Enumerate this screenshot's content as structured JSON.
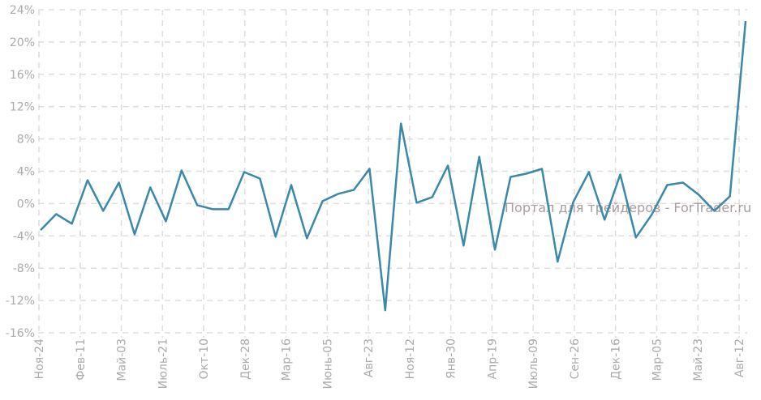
{
  "chart_data": {
    "type": "line",
    "title": "",
    "xlabel": "",
    "ylabel": "",
    "ylim": [
      -16,
      24
    ],
    "yticks": [
      -16,
      -12,
      -8,
      -4,
      0,
      4,
      8,
      12,
      16,
      20,
      24
    ],
    "ytick_labels": [
      "-16%",
      "-12%",
      "-8%",
      "-4%",
      "0%",
      "4%",
      "8%",
      "12%",
      "16%",
      "20%",
      "24%"
    ],
    "grid": true,
    "xtick_labels": [
      "Ноя-24",
      "Фев-11",
      "Май-03",
      "Июль-21",
      "Окт-10",
      "Дек-28",
      "Мар-16",
      "Июнь-05",
      "Авг-23",
      "Ноя-12",
      "Янв-30",
      "Апр-19",
      "Июль-09",
      "Сен-26",
      "Дек-16",
      "Мар-05",
      "Май-23",
      "Авг-12"
    ],
    "series": [
      {
        "name": "value",
        "color": "#3a88aa",
        "values": [
          -3.3,
          -1.3,
          -2.5,
          2.9,
          -0.9,
          2.6,
          -3.8,
          2.0,
          -2.2,
          4.1,
          -0.2,
          -0.7,
          -0.7,
          3.9,
          3.1,
          -4.1,
          2.3,
          -4.3,
          0.3,
          1.2,
          1.7,
          4.3,
          -13.2,
          9.9,
          0.1,
          0.8,
          4.7,
          -5.2,
          5.8,
          -5.7,
          3.3,
          3.7,
          4.3,
          -7.2,
          0.2,
          3.9,
          -2.0,
          3.6,
          -4.2,
          -1.4,
          2.3,
          2.6,
          1.1,
          -0.9,
          0.9,
          22.6
        ]
      }
    ],
    "watermark": "Портал для трейдеров - ForTrader.ru"
  }
}
